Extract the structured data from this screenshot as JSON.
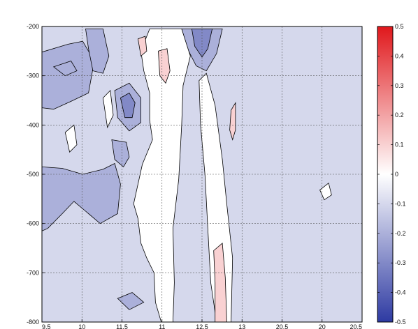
{
  "chart_data": {
    "type": "heatmap",
    "title": "",
    "xlabel": "",
    "ylabel": "",
    "xlim": [
      9.5,
      20.5
    ],
    "ylim": [
      -800,
      -200
    ],
    "x_ticks": [
      "9.5",
      "10",
      "11.5",
      "11",
      "12.5",
      "13",
      "20.5",
      "20",
      "20.5"
    ],
    "y_ticks": [
      -200,
      -300,
      -400,
      -500,
      -600,
      -700,
      -800
    ],
    "grid": true,
    "colorbar": {
      "range": [
        -0.5,
        0.5
      ],
      "ticks": [
        "0.5",
        "0.4",
        "0.3",
        "0.2",
        "0.1",
        "0",
        "-0.1",
        "-0.2",
        "-0.3",
        "-0.4",
        "-0.5"
      ],
      "colormap": [
        "#2e3aa2",
        "#ffffff",
        "#e0181c"
      ]
    },
    "contour_levels": [
      -0.3,
      -0.2,
      -0.1,
      0,
      0.1
    ],
    "regions": [
      {
        "level": -0.2,
        "points": [
          [
            9.5,
            -252
          ],
          [
            10.4,
            -236
          ],
          [
            10.9,
            -230
          ],
          [
            11.3,
            -270
          ],
          [
            11.1,
            -335
          ],
          [
            10.5,
            -352
          ],
          [
            9.9,
            -368
          ],
          [
            9.5,
            -365
          ]
        ]
      },
      {
        "level": -0.2,
        "points": [
          [
            9.5,
            -485
          ],
          [
            10.2,
            -488
          ],
          [
            10.9,
            -500
          ],
          [
            11.6,
            -490
          ],
          [
            12.0,
            -478
          ],
          [
            12.2,
            -520
          ],
          [
            12.1,
            -580
          ],
          [
            11.5,
            -600
          ],
          [
            11.0,
            -575
          ],
          [
            10.6,
            -555
          ],
          [
            10.2,
            -580
          ],
          [
            9.7,
            -610
          ],
          [
            9.5,
            -615
          ]
        ]
      },
      {
        "level": -0.2,
        "points": [
          [
            11.0,
            -205
          ],
          [
            11.6,
            -205
          ],
          [
            11.8,
            -260
          ],
          [
            11.6,
            -295
          ],
          [
            11.25,
            -290
          ],
          [
            11.1,
            -245
          ]
        ]
      },
      {
        "level": -0.2,
        "points": [
          [
            11.9,
            -430
          ],
          [
            12.4,
            -435
          ],
          [
            12.5,
            -465
          ],
          [
            12.3,
            -485
          ],
          [
            12.0,
            -470
          ]
        ]
      },
      {
        "level": -0.2,
        "points": [
          [
            12.0,
            -330
          ],
          [
            12.5,
            -315
          ],
          [
            12.9,
            -345
          ],
          [
            12.9,
            -395
          ],
          [
            12.5,
            -412
          ],
          [
            12.1,
            -385
          ]
        ]
      },
      {
        "level": -0.3,
        "points": [
          [
            12.2,
            -345
          ],
          [
            12.5,
            -335
          ],
          [
            12.7,
            -355
          ],
          [
            12.6,
            -385
          ],
          [
            12.35,
            -385
          ]
        ]
      },
      {
        "level": -0.2,
        "points": [
          [
            14.3,
            -205
          ],
          [
            15.7,
            -205
          ],
          [
            15.5,
            -255
          ],
          [
            15.15,
            -290
          ],
          [
            14.8,
            -280
          ],
          [
            14.5,
            -245
          ]
        ]
      },
      {
        "level": -0.3,
        "points": [
          [
            14.65,
            -205
          ],
          [
            15.35,
            -205
          ],
          [
            15.2,
            -245
          ],
          [
            15.0,
            -262
          ],
          [
            14.75,
            -240
          ]
        ]
      },
      {
        "level": -0.2,
        "points": [
          [
            12.1,
            -752
          ],
          [
            12.6,
            -740
          ],
          [
            13.0,
            -760
          ],
          [
            12.5,
            -775
          ]
        ]
      },
      {
        "level": -0.2,
        "points": [
          [
            9.9,
            -282
          ],
          [
            10.5,
            -270
          ],
          [
            10.7,
            -290
          ],
          [
            10.3,
            -300
          ]
        ]
      },
      {
        "level": 0,
        "points": [
          [
            13.2,
            -205
          ],
          [
            14.3,
            -205
          ],
          [
            14.6,
            -260
          ],
          [
            14.35,
            -320
          ],
          [
            14.3,
            -400
          ],
          [
            14.2,
            -510
          ],
          [
            14.0,
            -610
          ],
          [
            14.05,
            -720
          ],
          [
            14.0,
            -800
          ],
          [
            13.6,
            -800
          ],
          [
            13.4,
            -760
          ],
          [
            13.35,
            -700
          ],
          [
            13.1,
            -670
          ],
          [
            12.9,
            -640
          ],
          [
            12.8,
            -590
          ],
          [
            12.65,
            -560
          ],
          [
            12.95,
            -480
          ],
          [
            13.3,
            -430
          ],
          [
            13.2,
            -390
          ],
          [
            13.2,
            -335
          ],
          [
            13.0,
            -290
          ],
          [
            12.9,
            -250
          ]
        ]
      },
      {
        "level": 0,
        "points": [
          [
            14.9,
            -310
          ],
          [
            15.15,
            -295
          ],
          [
            15.45,
            -360
          ],
          [
            15.7,
            -470
          ],
          [
            15.85,
            -560
          ],
          [
            16.05,
            -670
          ],
          [
            16.0,
            -800
          ],
          [
            15.5,
            -800
          ],
          [
            15.3,
            -720
          ],
          [
            15.2,
            -610
          ],
          [
            15.1,
            -500
          ],
          [
            14.95,
            -400
          ]
        ]
      },
      {
        "level": 0,
        "points": [
          [
            10.3,
            -415
          ],
          [
            10.6,
            -400
          ],
          [
            10.7,
            -440
          ],
          [
            10.45,
            -455
          ]
        ]
      },
      {
        "level": 0,
        "points": [
          [
            11.6,
            -345
          ],
          [
            11.85,
            -330
          ],
          [
            11.95,
            -380
          ],
          [
            11.75,
            -405
          ]
        ]
      },
      {
        "level": 0,
        "points": [
          [
            19.05,
            -532
          ],
          [
            19.35,
            -518
          ],
          [
            19.45,
            -542
          ],
          [
            19.2,
            -552
          ]
        ]
      },
      {
        "level": 0.1,
        "points": [
          [
            13.5,
            -250
          ],
          [
            13.8,
            -245
          ],
          [
            13.9,
            -290
          ],
          [
            13.75,
            -315
          ],
          [
            13.55,
            -300
          ]
        ]
      },
      {
        "level": 0.1,
        "points": [
          [
            12.8,
            -225
          ],
          [
            13.05,
            -220
          ],
          [
            13.1,
            -250
          ],
          [
            12.9,
            -260
          ]
        ]
      },
      {
        "level": 0.1,
        "points": [
          [
            15.4,
            -655
          ],
          [
            15.7,
            -640
          ],
          [
            15.8,
            -710
          ],
          [
            15.85,
            -800
          ],
          [
            15.45,
            -800
          ],
          [
            15.45,
            -720
          ]
        ]
      },
      {
        "level": 0.1,
        "points": [
          [
            16.0,
            -370
          ],
          [
            16.15,
            -355
          ],
          [
            16.15,
            -410
          ],
          [
            16.05,
            -430
          ],
          [
            15.95,
            -410
          ]
        ]
      }
    ]
  }
}
